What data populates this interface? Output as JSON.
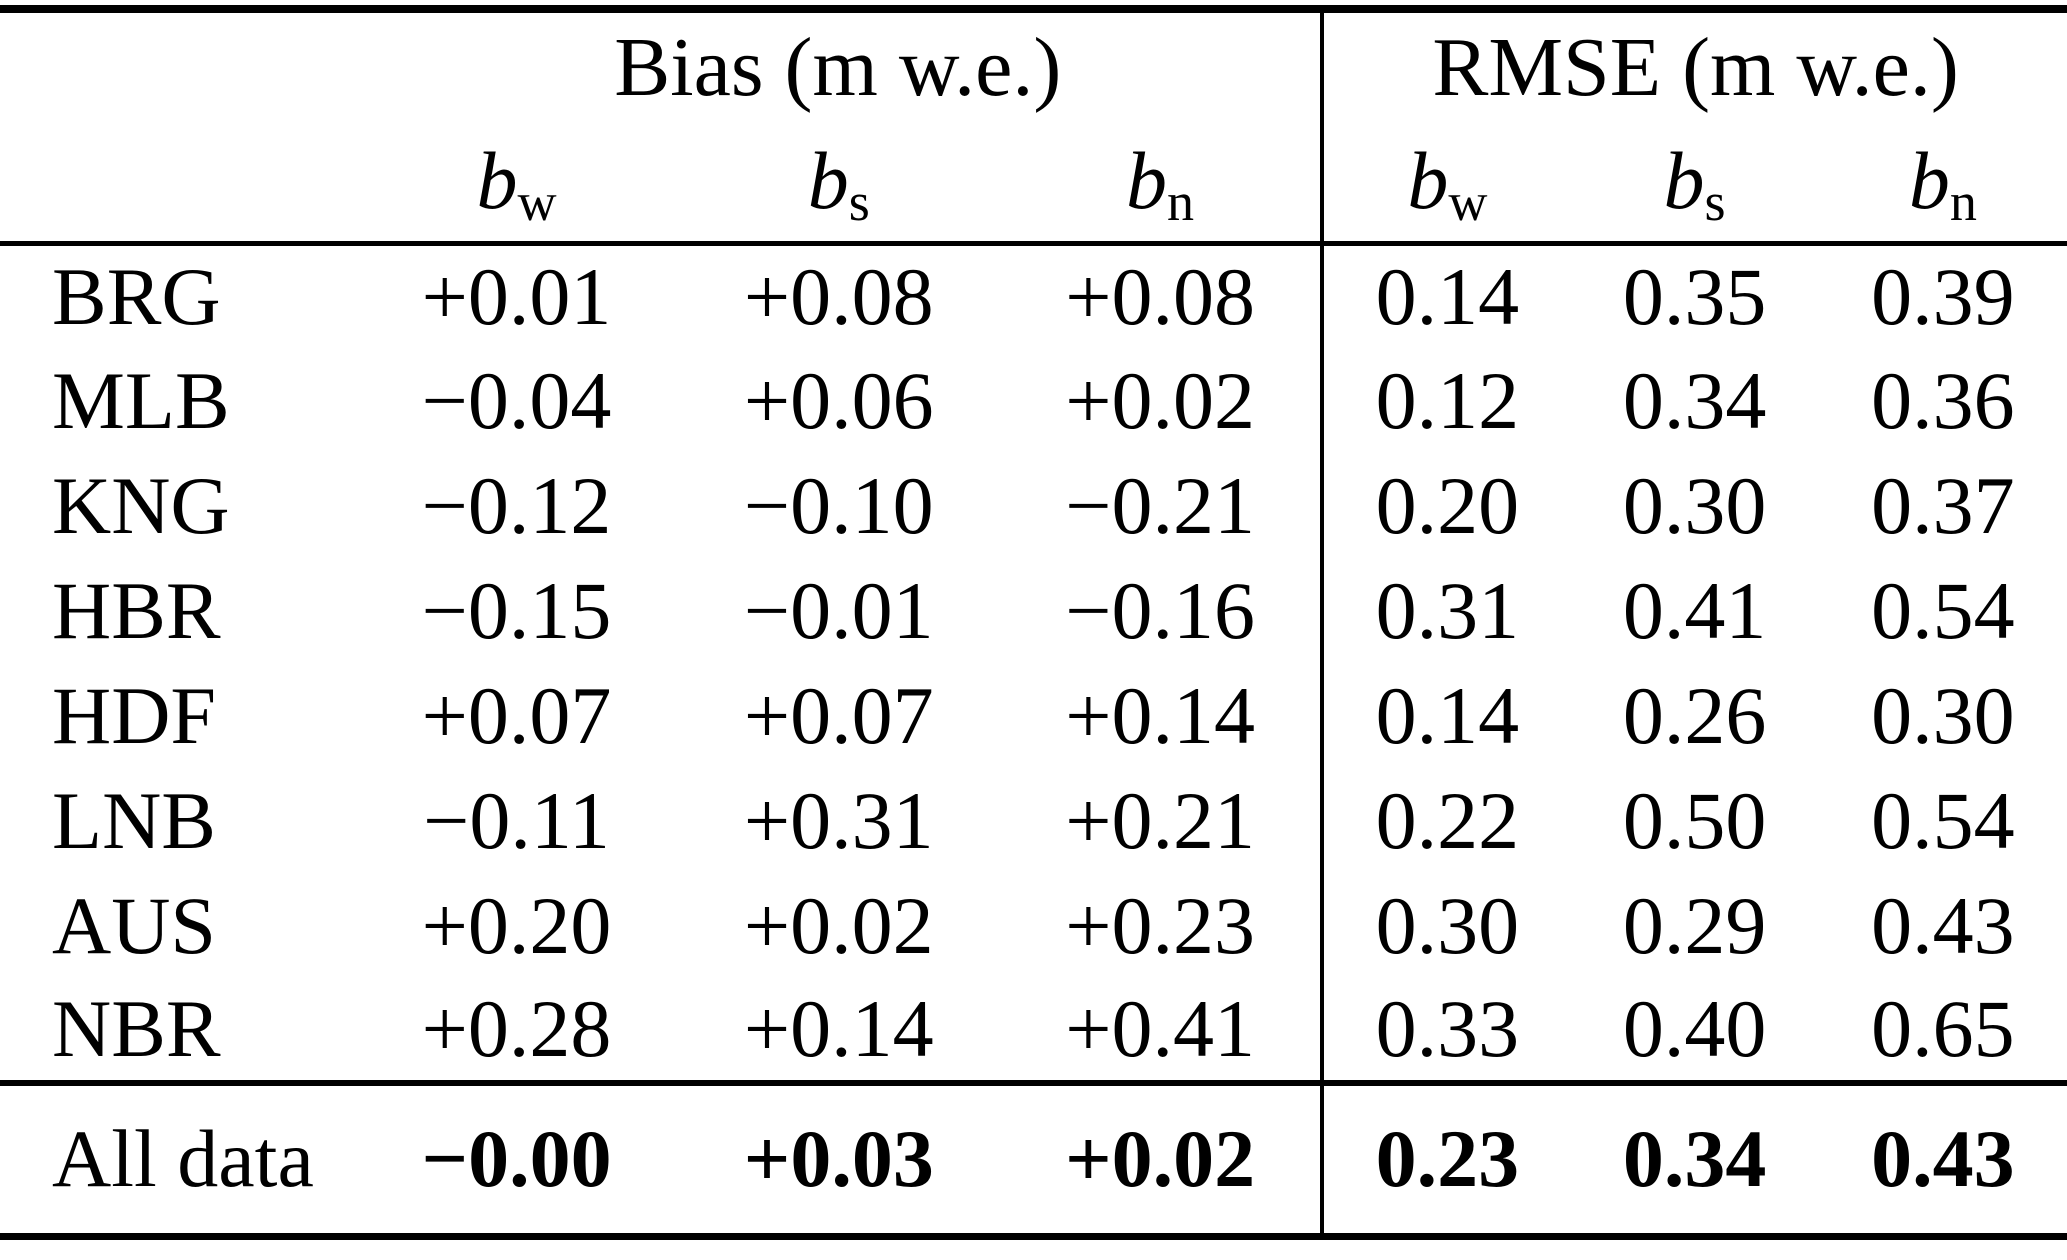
{
  "table": {
    "col_groups": [
      {
        "label": "Bias (m w.e.)"
      },
      {
        "label": "RMSE (m w.e.)"
      }
    ],
    "sub": {
      "symbol": "b",
      "subscripts": [
        "w",
        "s",
        "n"
      ]
    },
    "rows": [
      {
        "label": "BRG",
        "bias": [
          "+0.01",
          "+0.08",
          "+0.08"
        ],
        "rmse": [
          "0.14",
          "0.35",
          "0.39"
        ]
      },
      {
        "label": "MLB",
        "bias": [
          "−0.04",
          "+0.06",
          "+0.02"
        ],
        "rmse": [
          "0.12",
          "0.34",
          "0.36"
        ]
      },
      {
        "label": "KNG",
        "bias": [
          "−0.12",
          "−0.10",
          "−0.21"
        ],
        "rmse": [
          "0.20",
          "0.30",
          "0.37"
        ]
      },
      {
        "label": "HBR",
        "bias": [
          "−0.15",
          "−0.01",
          "−0.16"
        ],
        "rmse": [
          "0.31",
          "0.41",
          "0.54"
        ]
      },
      {
        "label": "HDF",
        "bias": [
          "+0.07",
          "+0.07",
          "+0.14"
        ],
        "rmse": [
          "0.14",
          "0.26",
          "0.30"
        ]
      },
      {
        "label": "LNB",
        "bias": [
          "−0.11",
          "+0.31",
          "+0.21"
        ],
        "rmse": [
          "0.22",
          "0.50",
          "0.54"
        ]
      },
      {
        "label": "AUS",
        "bias": [
          "+0.20",
          "+0.02",
          "+0.23"
        ],
        "rmse": [
          "0.30",
          "0.29",
          "0.43"
        ]
      },
      {
        "label": "NBR",
        "bias": [
          "+0.28",
          "+0.14",
          "+0.41"
        ],
        "rmse": [
          "0.33",
          "0.40",
          "0.65"
        ]
      }
    ],
    "summary": {
      "label": "All data",
      "bias": [
        "−0.00",
        "+0.03",
        "+0.02"
      ],
      "rmse": [
        "0.23",
        "0.34",
        "0.43"
      ]
    }
  },
  "colors": {
    "text": "#000000",
    "background": "#ffffff",
    "rule": "#000000"
  }
}
